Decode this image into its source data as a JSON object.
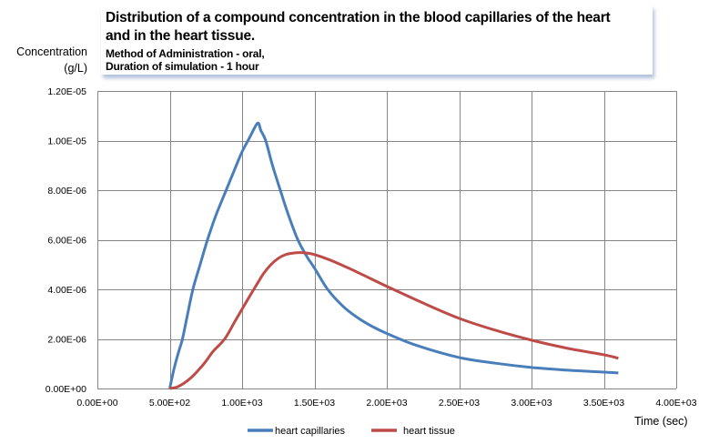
{
  "chart_data": {
    "type": "line",
    "title": "Distribution of a compound  concentration in the blood capillaries of the heart and in the heart tissue.",
    "title_lines": [
      "Distribution of a compound  concentration in the blood capillaries of the heart",
      "and in the heart tissue."
    ],
    "subtitle_lines": [
      "Method of Administration  - oral,",
      "Duration  of simulation - 1 hour"
    ],
    "ylabel_lines": [
      "Concentration",
      "(g/L)"
    ],
    "xlabel": "Time (sec)",
    "xlim": [
      0,
      4000
    ],
    "ylim": [
      0,
      1.2e-05
    ],
    "grid": true,
    "legend_position": "bottom",
    "x_ticks": [
      0,
      500,
      1000,
      1500,
      2000,
      2500,
      3000,
      3500,
      4000
    ],
    "x_tick_labels": [
      "0.00E+00",
      "5.00E+02",
      "1.00E+03",
      "1.50E+03",
      "2.00E+03",
      "2.50E+03",
      "3.00E+03",
      "3.50E+03",
      "4.00E+03"
    ],
    "y_ticks": [
      0,
      2e-06,
      4e-06,
      6e-06,
      8e-06,
      1e-05,
      1.2e-05
    ],
    "y_tick_labels": [
      "0.00E+00",
      "2.00E-06",
      "4.00E-06",
      "6.00E-06",
      "8.00E-06",
      "1.00E-05",
      "1.20E-05"
    ],
    "series": [
      {
        "name": "heart capillaries",
        "color": "#4a7ebb",
        "x": [
          500,
          530,
          560,
          588,
          620,
          660,
          710,
          761,
          820,
          890,
          960,
          1000,
          1050,
          1107,
          1130,
          1163,
          1210,
          1264,
          1320,
          1385,
          1450,
          1500,
          1591,
          1700,
          1800,
          1900,
          2000,
          2200,
          2500,
          2750,
          3000,
          3250,
          3500,
          3600
        ],
        "values": [
          0,
          8e-07,
          1.45e-06,
          2e-06,
          2.9e-06,
          4e-06,
          5e-06,
          6e-06,
          7e-06,
          8e-06,
          9e-06,
          9.55e-06,
          1.01e-05,
          1.07e-05,
          1.04e-05,
          1e-05,
          9e-06,
          8e-06,
          7e-06,
          6e-06,
          5.3e-06,
          4.86e-06,
          4e-06,
          3.3e-06,
          2.85e-06,
          2.5e-06,
          2.22e-06,
          1.75e-06,
          1.25e-06,
          1.02e-06,
          8.5e-07,
          7.4e-07,
          6.6e-07,
          6.3e-07
        ]
      },
      {
        "name": "heart tissue",
        "color": "#be4b48",
        "x": [
          500,
          550,
          600,
          650,
          700,
          750,
          800,
          880,
          950,
          1000,
          1050,
          1107,
          1150,
          1200,
          1250,
          1300,
          1350,
          1400,
          1450,
          1500,
          1600,
          1700,
          1800,
          1900,
          2000,
          2250,
          2500,
          2750,
          3000,
          3250,
          3500,
          3600
        ],
        "values": [
          0,
          6e-08,
          2.2e-07,
          4.5e-07,
          7.5e-07,
          1.1e-06,
          1.5e-06,
          2e-06,
          2.7e-06,
          3.2e-06,
          3.7e-06,
          4.25e-06,
          4.65e-06,
          5e-06,
          5.25e-06,
          5.4e-06,
          5.46e-06,
          5.48e-06,
          5.46e-06,
          5.4e-06,
          5.2e-06,
          4.95e-06,
          4.68e-06,
          4.4e-06,
          4.12e-06,
          3.45e-06,
          2.83e-06,
          2.35e-06,
          1.95e-06,
          1.62e-06,
          1.36e-06,
          1.22e-06
        ]
      }
    ]
  }
}
